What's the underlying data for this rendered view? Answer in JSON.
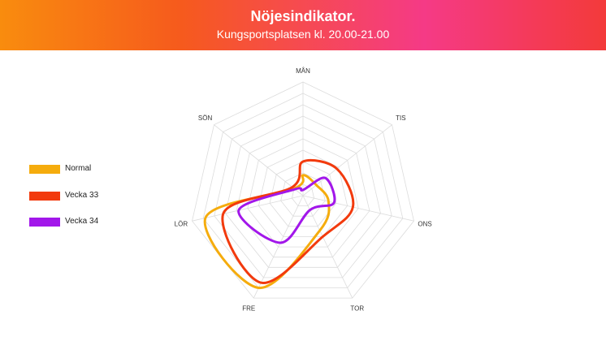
{
  "header": {
    "title": "Nöjesindikator.",
    "subtitle": "Kungsportsplatsen kl. 20.00-21.00"
  },
  "chart_data": {
    "type": "radar",
    "title": "Nöjesindikator.",
    "subtitle": "Kungsportsplatsen kl. 20.00-21.00",
    "categories": [
      "MÅN",
      "TIS",
      "ONS",
      "TOR",
      "FRE",
      "LÖR",
      "SÖN"
    ],
    "rlim": [
      0,
      10
    ],
    "grid": true,
    "legend_position": "left",
    "series": [
      {
        "name": "Normal",
        "color": "#f5ac0d",
        "values": [
          1.8,
          1.5,
          2.3,
          3.4,
          9.0,
          8.8,
          1.0
        ]
      },
      {
        "name": "Vecka 33",
        "color": "#f23a0d",
        "values": [
          3.0,
          3.8,
          4.5,
          4.0,
          8.5,
          7.2,
          1.2
        ]
      },
      {
        "name": "Vecka 34",
        "color": "#a217ea",
        "values": [
          0.5,
          2.5,
          2.8,
          1.4,
          4.6,
          5.8,
          0.9
        ]
      }
    ]
  }
}
